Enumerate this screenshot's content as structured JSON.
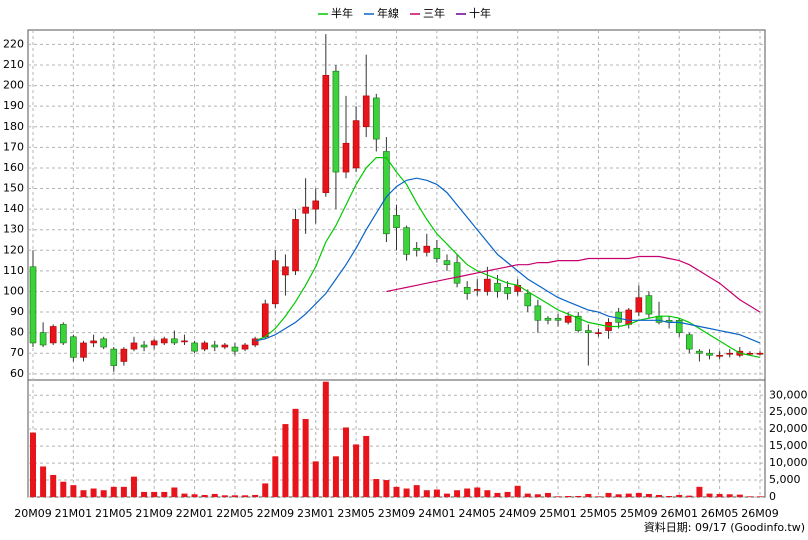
{
  "chart_data": [
    {
      "type": "candlestick",
      "categories": [
        "20M09",
        null,
        null,
        null,
        "21M01",
        null,
        null,
        null,
        "21M05",
        null,
        null,
        null,
        "21M09",
        null,
        null,
        null,
        "22M01",
        null,
        null,
        null,
        "22M05",
        null,
        null,
        null,
        "22M09",
        null,
        null,
        null,
        "23M01",
        null,
        null,
        null,
        "23M05",
        null,
        null,
        null,
        "23M09",
        null,
        null,
        null,
        "24M01",
        null,
        null,
        null,
        "24M05",
        null,
        null,
        null,
        "24M09",
        null,
        null,
        null,
        "25M01",
        null,
        null,
        null,
        "25M05",
        null,
        null,
        null,
        "25M09",
        null,
        null,
        null,
        "26M01",
        null,
        null,
        null,
        "26M05",
        null,
        null,
        null,
        "26M09"
      ],
      "open": [
        112,
        80,
        75,
        84,
        78,
        68,
        75,
        77,
        72,
        66,
        72,
        74,
        74,
        75,
        77,
        76,
        75,
        72,
        74,
        73,
        73,
        72,
        74,
        78,
        94,
        108,
        110,
        138,
        140,
        148,
        207,
        158,
        160,
        180,
        194,
        168,
        137,
        131,
        121,
        119,
        121,
        115,
        114,
        102,
        101,
        100,
        104,
        102,
        100,
        99,
        93,
        87,
        87,
        85,
        88,
        81,
        80,
        81,
        90,
        84,
        90,
        98,
        88,
        86,
        86,
        79,
        71,
        70,
        69,
        70,
        69,
        70,
        70
      ],
      "high": [
        120,
        85,
        84,
        85,
        79,
        76,
        79,
        78,
        73,
        73,
        78,
        76,
        77,
        78,
        81,
        79,
        76,
        76,
        76,
        75,
        75,
        75,
        78,
        96,
        120,
        118,
        140,
        155,
        150,
        225,
        210,
        195,
        190,
        215,
        196,
        175,
        142,
        132,
        124,
        128,
        125,
        118,
        118,
        105,
        106,
        112,
        108,
        105,
        106,
        101,
        96,
        88,
        89,
        90,
        90,
        84,
        82,
        87,
        92,
        92,
        103,
        100,
        95,
        88,
        87,
        80,
        72,
        72,
        71,
        72,
        73,
        71,
        71
      ],
      "low": [
        73,
        73,
        74,
        74,
        66,
        66,
        73,
        72,
        61,
        64,
        71,
        71,
        72,
        74,
        74,
        74,
        70,
        71,
        71,
        72,
        69,
        71,
        73,
        77,
        92,
        98,
        108,
        128,
        133,
        146,
        140,
        155,
        158,
        175,
        168,
        124,
        120,
        115,
        117,
        117,
        114,
        110,
        102,
        96,
        98,
        98,
        97,
        96,
        98,
        90,
        80,
        84,
        83,
        84,
        80,
        64,
        78,
        77,
        82,
        82,
        88,
        87,
        84,
        82,
        78,
        70,
        66,
        67,
        67,
        68,
        68,
        69,
        69
      ],
      "close": [
        75,
        74,
        83,
        75,
        68,
        75,
        76,
        73,
        64,
        72,
        75,
        73,
        76,
        77,
        75,
        76,
        71,
        75,
        73,
        74,
        71,
        74,
        77,
        94,
        115,
        112,
        135,
        141,
        144,
        205,
        158,
        172,
        183,
        195,
        174,
        128,
        131,
        118,
        120,
        122,
        116,
        113,
        104,
        99,
        101,
        106,
        100,
        99,
        103,
        93,
        86,
        86,
        86,
        88,
        81,
        80,
        80,
        85,
        85,
        91,
        97,
        89,
        85,
        85,
        80,
        72,
        70,
        69,
        69,
        70,
        71,
        70,
        70
      ],
      "up_color": "#e8141c",
      "down_color": "#3bd23b",
      "series": [
        {
          "name": "半年",
          "color": "#00c800",
          "values": [
            null,
            null,
            null,
            null,
            null,
            null,
            null,
            null,
            null,
            null,
            null,
            null,
            null,
            null,
            null,
            null,
            null,
            null,
            null,
            null,
            null,
            null,
            76,
            78,
            82,
            88,
            95,
            103,
            112,
            124,
            132,
            142,
            152,
            160,
            165,
            165,
            158,
            152,
            143,
            135,
            128,
            123,
            118,
            113,
            110,
            108,
            106,
            104,
            103,
            100,
            97,
            94,
            91,
            89,
            87,
            85,
            84,
            83,
            83,
            84,
            86,
            87,
            88,
            88,
            87,
            85,
            82,
            79,
            76,
            73,
            70,
            69,
            68
          ]
        },
        {
          "name": "年線",
          "color": "#0a64c8",
          "values": [
            null,
            null,
            null,
            null,
            null,
            null,
            null,
            null,
            null,
            null,
            null,
            null,
            null,
            null,
            null,
            null,
            null,
            null,
            null,
            null,
            null,
            null,
            76,
            77,
            79,
            82,
            85,
            89,
            94,
            99,
            106,
            113,
            121,
            130,
            138,
            146,
            151,
            154,
            155,
            154,
            152,
            148,
            142,
            136,
            130,
            124,
            118,
            114,
            110,
            106,
            103,
            100,
            97,
            95,
            93,
            91,
            90,
            88,
            87,
            86,
            86,
            86,
            86,
            85,
            85,
            84,
            83,
            82,
            81,
            80,
            79,
            77,
            75
          ]
        },
        {
          "name": "三年",
          "color": "#c8006e",
          "values": [
            null,
            null,
            null,
            null,
            null,
            null,
            null,
            null,
            null,
            null,
            null,
            null,
            null,
            null,
            null,
            null,
            null,
            null,
            null,
            null,
            null,
            null,
            null,
            null,
            null,
            null,
            null,
            null,
            null,
            null,
            null,
            null,
            null,
            null,
            null,
            100,
            101,
            102,
            103,
            104,
            105,
            106,
            107,
            108,
            109,
            110,
            111,
            112,
            113,
            113,
            114,
            114,
            115,
            115,
            115,
            116,
            116,
            116,
            116,
            116,
            117,
            117,
            117,
            116,
            115,
            113,
            110,
            107,
            104,
            100,
            96,
            93,
            90
          ]
        },
        {
          "name": "十年",
          "color": "#6e0096",
          "values": [
            null,
            null,
            null,
            null,
            null,
            null,
            null,
            null,
            null,
            null,
            null,
            null,
            null,
            null,
            null,
            null,
            null,
            null,
            null,
            null,
            null,
            null,
            null,
            null,
            null,
            null,
            null,
            null,
            null,
            null,
            null,
            null,
            null,
            null,
            null,
            null,
            null,
            null,
            null,
            null,
            null,
            null,
            null,
            null,
            null,
            null,
            null,
            null,
            null,
            null,
            null,
            null,
            null,
            null,
            null,
            null,
            null,
            null,
            null,
            null,
            null,
            null,
            null,
            null,
            null,
            null,
            null,
            null,
            null,
            null,
            null,
            null,
            null
          ]
        }
      ],
      "ylim": [
        57,
        227
      ],
      "yticks": [
        60,
        70,
        80,
        90,
        100,
        110,
        120,
        130,
        140,
        150,
        160,
        170,
        180,
        190,
        200,
        210,
        220
      ],
      "grid": true,
      "legend": "top"
    },
    {
      "type": "bar",
      "values": [
        19000,
        9000,
        6500,
        4500,
        3500,
        2000,
        2500,
        2000,
        3000,
        3000,
        6000,
        1500,
        1500,
        1500,
        2800,
        1000,
        800,
        600,
        900,
        500,
        500,
        500,
        600,
        4000,
        12000,
        21500,
        26000,
        23000,
        10500,
        34000,
        12000,
        20500,
        15500,
        18000,
        5300,
        5000,
        3000,
        2500,
        3500,
        2000,
        2200,
        1000,
        2000,
        2500,
        2800,
        2000,
        1200,
        1500,
        3300,
        1000,
        800,
        1200,
        200,
        300,
        300,
        900,
        200,
        1200,
        800,
        1000,
        1200,
        900,
        600,
        300,
        600,
        400,
        3000,
        1000,
        900,
        800,
        700,
        200,
        200
      ],
      "color": "#e8141c",
      "ylim": [
        0,
        34500
      ],
      "yticks": [
        0,
        {
          "value": 5000,
          "label": "5,000"
        },
        {
          "value": 10000,
          "label": "10,000"
        },
        {
          "value": 15000,
          "label": "15,000"
        },
        {
          "value": 20000,
          "label": "20,000"
        },
        {
          "value": 25000,
          "label": "25,000"
        },
        {
          "value": 30000,
          "label": "30,000"
        }
      ],
      "grid": true
    }
  ],
  "footer": "資料日期: 09/17  (Goodinfo.tw)"
}
